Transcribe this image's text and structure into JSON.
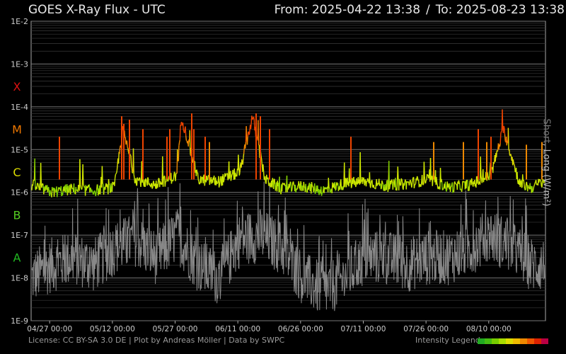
{
  "header": {
    "title": "GOES X-Ray Flux - UTC",
    "range_from": "From: 2025-04-22 13:38",
    "range_sep": "/",
    "range_to": "To: 2025-08-23 13:38"
  },
  "footer": {
    "license": "License: CC BY-SA 3.0 DE | Plot by Andreas Möller | Data by SWPC",
    "legend_label": "Intensity Legend",
    "legend_colors": [
      "#22aa22",
      "#44bb11",
      "#77cc00",
      "#aadd00",
      "#dddd00",
      "#eebb00",
      "#ee8800",
      "#ee5500",
      "#dd2200",
      "#bb0044"
    ]
  },
  "axis": {
    "short_label": "Short",
    "sep": ", ",
    "long_label": "Long (W/m²)"
  },
  "chart_data": {
    "type": "line",
    "title": "GOES X-Ray Flux - UTC",
    "ylabel": "Short, Long (W/m²)",
    "yscale": "log",
    "ylim": [
      1e-09,
      0.01
    ],
    "y_ticks": [
      "1E-9",
      "1E-8",
      "1E-7",
      "1E-6",
      "1E-5",
      "1E-4",
      "1E-3",
      "1E-2"
    ],
    "flare_classes": [
      {
        "label": "A",
        "color": "#22bb22",
        "y": 3e-08
      },
      {
        "label": "B",
        "color": "#55cc22",
        "y": 3e-07
      },
      {
        "label": "C",
        "color": "#dddd00",
        "y": 3e-06
      },
      {
        "label": "M",
        "color": "#ee7700",
        "y": 3e-05
      },
      {
        "label": "X",
        "color": "#dd1111",
        "y": 0.0003
      }
    ],
    "x_start": "2025-04-22 13:38",
    "x_end": "2025-08-23 13:38",
    "x_ticks": [
      "04/27 00:00",
      "05/12 00:00",
      "05/27 00:00",
      "06/11 00:00",
      "06/26 00:00",
      "07/11 00:00",
      "07/26 00:00",
      "08/10 00:00"
    ],
    "grid": true,
    "series": [
      {
        "name": "Long",
        "color_scale": "intensity",
        "x": [
          "04/22",
          "04/27",
          "05/02",
          "05/07",
          "05/12",
          "05/14",
          "05/17",
          "05/22",
          "05/27",
          "05/28",
          "06/01",
          "06/06",
          "06/11",
          "06/14",
          "06/17",
          "06/21",
          "06/26",
          "07/01",
          "07/06",
          "07/11",
          "07/16",
          "07/21",
          "07/26",
          "07/31",
          "08/05",
          "08/10",
          "08/13",
          "08/17",
          "08/20",
          "08/23"
        ],
        "values": [
          1.5e-06,
          1e-06,
          1.2e-06,
          1.1e-06,
          1.3e-06,
          3e-05,
          2e-06,
          1.5e-06,
          2.5e-06,
          6e-05,
          2e-06,
          1.8e-06,
          3e-06,
          6e-05,
          2e-06,
          1.2e-06,
          1.4e-06,
          1.1e-06,
          1.6e-06,
          1.8e-06,
          1.4e-06,
          1.6e-06,
          2e-06,
          1.3e-06,
          1.5e-06,
          2.5e-06,
          3e-05,
          1.5e-06,
          1.3e-06,
          2e-06
        ]
      },
      {
        "name": "Short",
        "color": "#888888",
        "x": [
          "04/22",
          "04/27",
          "05/02",
          "05/07",
          "05/12",
          "05/17",
          "05/22",
          "05/27",
          "06/01",
          "06/06",
          "06/11",
          "06/16",
          "06/21",
          "06/26",
          "07/01",
          "07/06",
          "07/11",
          "07/16",
          "07/21",
          "07/26",
          "07/31",
          "08/05",
          "08/10",
          "08/15",
          "08/20",
          "08/23"
        ],
        "values": [
          1e-08,
          2e-08,
          3e-08,
          2e-08,
          5e-08,
          8e-08,
          3e-08,
          1e-07,
          2e-08,
          1e-08,
          8e-08,
          1e-07,
          5e-08,
          1e-08,
          5e-09,
          1e-08,
          3e-08,
          3e-08,
          2e-08,
          3e-08,
          3e-08,
          5e-08,
          1e-07,
          5e-08,
          2e-08,
          2e-08
        ]
      }
    ]
  }
}
